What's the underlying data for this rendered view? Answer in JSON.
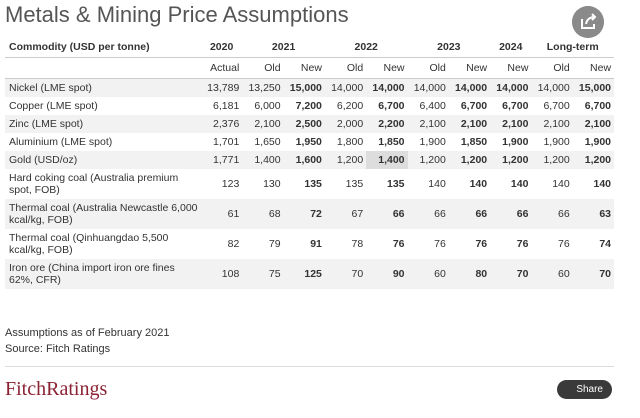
{
  "header": {
    "title": "Metals & Mining Price Assumptions"
  },
  "table": {
    "columns": [
      "Commodity (USD per tonne)",
      "2020",
      "2021",
      "2022",
      "2023",
      "2024",
      "Long-term"
    ],
    "subcolumns": [
      "Actual",
      "Old",
      "New",
      "Old",
      "New",
      "Old",
      "New",
      "New",
      "Old",
      "New"
    ],
    "rows": [
      [
        "Nickel (LME spot)",
        "13,789",
        "13,250",
        "15,000",
        "14,000",
        "14,000",
        "14,000",
        "14,000",
        "14,000",
        "14,000",
        "15,000"
      ],
      [
        "Copper (LME spot)",
        "6,181",
        "6,000",
        "7,200",
        "6,200",
        "6,700",
        "6,400",
        "6,700",
        "6,700",
        "6,700",
        "6,700"
      ],
      [
        "Zinc (LME spot)",
        "2,376",
        "2,100",
        "2,500",
        "2,000",
        "2,200",
        "2,100",
        "2,100",
        "2,100",
        "2,100",
        "2,100"
      ],
      [
        "Aluminium (LME spot)",
        "1,701",
        "1,650",
        "1,950",
        "1,800",
        "1,850",
        "1,900",
        "1,850",
        "1,900",
        "1,900",
        "1,900"
      ],
      [
        "Gold (USD/oz)",
        "1,771",
        "1,400",
        "1,600",
        "1,200",
        "1,400",
        "1,200",
        "1,200",
        "1,200",
        "1,200",
        "1,200"
      ],
      [
        "Hard coking coal (Australia premium spot, FOB)",
        "123",
        "130",
        "135",
        "135",
        "135",
        "140",
        "140",
        "140",
        "140",
        "140"
      ],
      [
        "Thermal coal (Australia Newcastle 6,000 kcal/kg, FOB)",
        "61",
        "68",
        "72",
        "67",
        "66",
        "66",
        "66",
        "66",
        "66",
        "63"
      ],
      [
        "Thermal coal (Qinhuangdao 5,500 kcal/kg, FOB)",
        "82",
        "79",
        "91",
        "78",
        "76",
        "76",
        "76",
        "76",
        "76",
        "74"
      ],
      [
        "Iron ore (China import iron ore fines 62%, CFR)",
        "108",
        "75",
        "125",
        "70",
        "90",
        "60",
        "80",
        "70",
        "60",
        "70"
      ]
    ]
  },
  "notes": [
    "Assumptions as of February 2021",
    "Source: Fitch Ratings"
  ],
  "footer": {
    "logo": "FitchRatings",
    "share": "Share"
  }
}
